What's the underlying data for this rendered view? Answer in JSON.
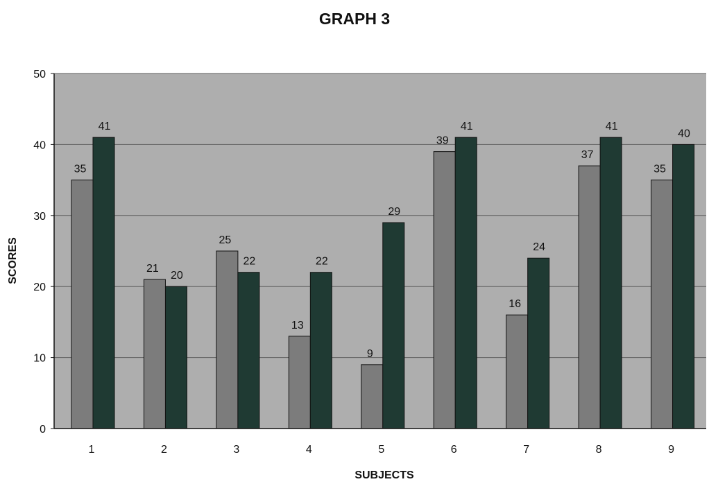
{
  "chart_data": {
    "type": "bar",
    "title": "GRAPH 3",
    "xlabel": "SUBJECTS",
    "ylabel": "SCORES",
    "categories": [
      "1",
      "2",
      "3",
      "4",
      "5",
      "6",
      "7",
      "8",
      "9"
    ],
    "series": [
      {
        "values": [
          35,
          21,
          25,
          13,
          9,
          39,
          16,
          37,
          35
        ]
      },
      {
        "values": [
          41,
          20,
          22,
          22,
          29,
          41,
          24,
          41,
          40
        ]
      }
    ],
    "ylim": [
      0,
      50
    ],
    "yticks": [
      "0",
      "10",
      "20",
      "30",
      "40",
      "50"
    ],
    "grid": true,
    "legend": "none"
  },
  "colors": {
    "plot_background": "#aeaeae",
    "series_1": "#7c7c7c",
    "series_2": "#1f3a33",
    "gridline": "#5e5e5e",
    "text": "#111111"
  }
}
